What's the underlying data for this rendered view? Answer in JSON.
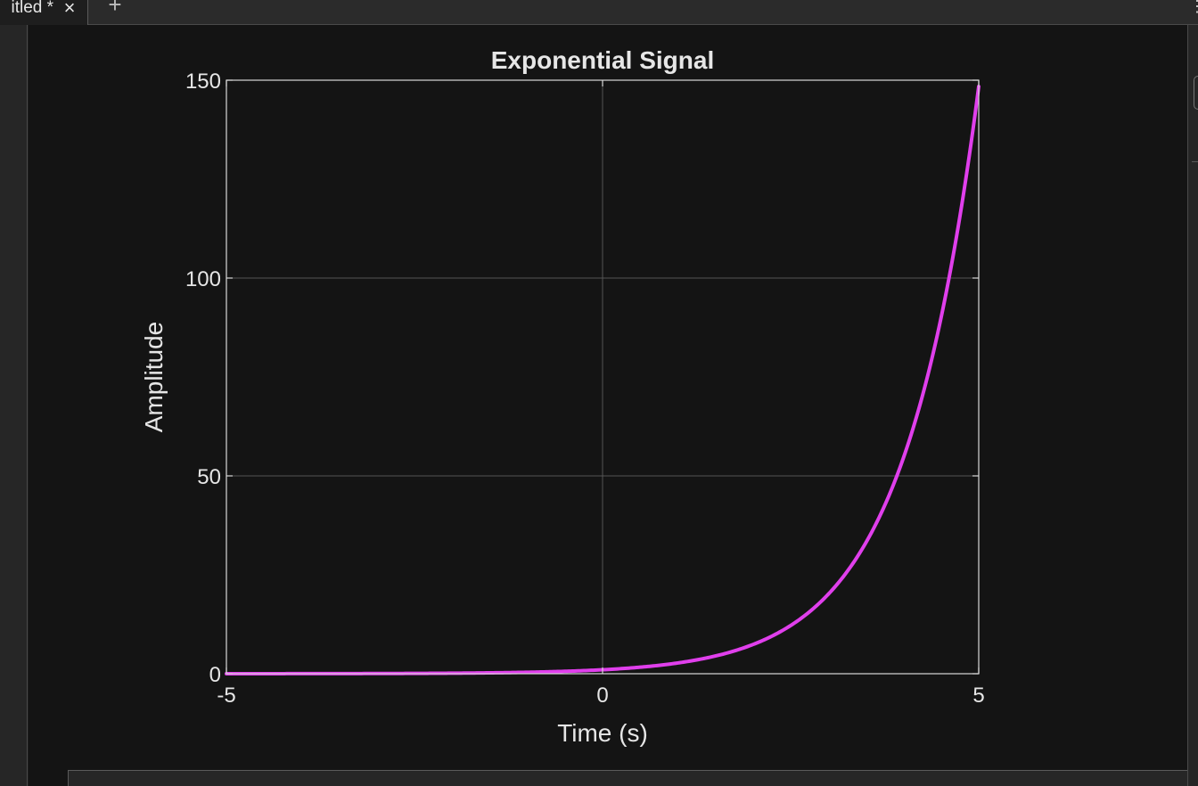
{
  "tab": {
    "label": "itled *",
    "close_glyph": "×",
    "add_glyph": "+",
    "menu_glyph": "⋮"
  },
  "chart_data": {
    "type": "line",
    "title": "Exponential Signal",
    "xlabel": "Time (s)",
    "ylabel": "Amplitude",
    "xlim": [
      -5,
      5
    ],
    "ylim": [
      0,
      150
    ],
    "xticks": [
      -5,
      0,
      5
    ],
    "yticks": [
      0,
      50,
      100,
      150
    ],
    "xtick_labels": [
      "-5",
      "0",
      "5"
    ],
    "ytick_labels": [
      "0",
      "50",
      "100",
      "150"
    ],
    "grid": true,
    "series": [
      {
        "function": "exp(t)",
        "color": "#e03fec",
        "x": [
          -5,
          -4.5,
          -4,
          -3.5,
          -3,
          -2.5,
          -2,
          -1.5,
          -1,
          -0.5,
          0,
          0.5,
          1,
          1.5,
          2,
          2.5,
          3,
          3.25,
          3.5,
          3.75,
          4,
          4.25,
          4.5,
          4.75,
          5
        ],
        "y": [
          0.007,
          0.011,
          0.018,
          0.03,
          0.05,
          0.082,
          0.135,
          0.223,
          0.368,
          0.607,
          1.0,
          1.649,
          2.718,
          4.482,
          7.389,
          12.18,
          20.09,
          25.79,
          33.12,
          42.52,
          54.6,
          70.11,
          90.02,
          115.58,
          148.41
        ]
      }
    ],
    "colors": {
      "background": "#141414",
      "axes_edge": "#d9d9d9",
      "grid": "#555555",
      "text": "#e6e6e6"
    }
  }
}
